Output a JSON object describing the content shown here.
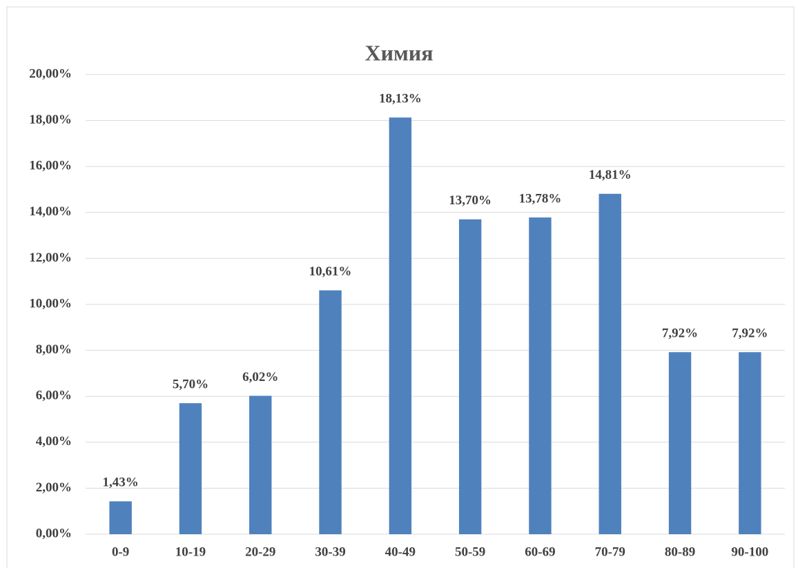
{
  "chart_data": {
    "type": "bar",
    "title": "Химия",
    "categories": [
      "0-9",
      "10-19",
      "20-29",
      "30-39",
      "40-49",
      "50-59",
      "60-69",
      "70-79",
      "80-89",
      "90-100"
    ],
    "values": [
      1.43,
      5.7,
      6.02,
      10.61,
      18.13,
      13.7,
      13.78,
      14.81,
      7.92,
      7.92
    ],
    "value_labels": [
      "1,43%",
      "5,70%",
      "6,02%",
      "10,61%",
      "18,13%",
      "13,70%",
      "13,78%",
      "14,81%",
      "7,92%",
      "7,92%"
    ],
    "color": "#4f81bd",
    "ylim": [
      0,
      20
    ],
    "yticks": [
      {
        "value": 0,
        "label": "0,00%"
      },
      {
        "value": 2,
        "label": "2,00%"
      },
      {
        "value": 4,
        "label": "4,00%"
      },
      {
        "value": 6,
        "label": "6,00%"
      },
      {
        "value": 8,
        "label": "8,00%"
      },
      {
        "value": 10,
        "label": "10,00%"
      },
      {
        "value": 12,
        "label": "12,00%"
      },
      {
        "value": 14,
        "label": "14,00%"
      },
      {
        "value": 16,
        "label": "16,00%"
      },
      {
        "value": 18,
        "label": "18,00%"
      },
      {
        "value": 20,
        "label": "20,00%"
      }
    ],
    "grid": true
  }
}
